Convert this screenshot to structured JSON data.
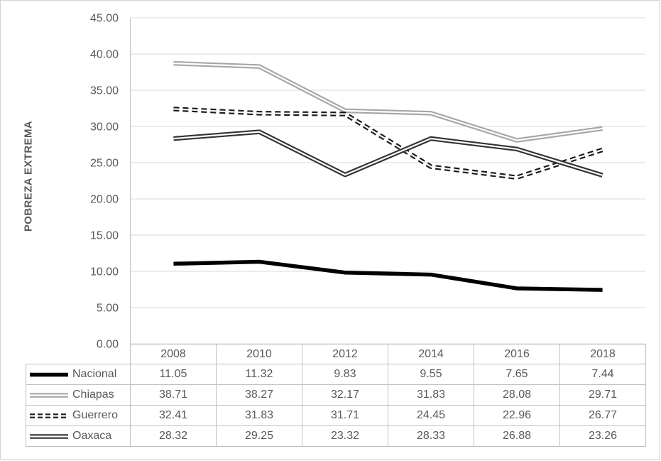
{
  "chart_data": {
    "type": "line",
    "title": "",
    "ylabel": "POBREZA EXTREMA",
    "xlabel": "",
    "ylim": [
      0,
      45
    ],
    "y_tick_step": 5,
    "y_tick_decimals": 2,
    "value_decimals": 2,
    "grid": true,
    "legend_position": "table-left",
    "categories": [
      "2008",
      "2010",
      "2012",
      "2014",
      "2016",
      "2018"
    ],
    "series": [
      {
        "name": "Nacional",
        "style": "solid-thick",
        "color": "#000000",
        "values": [
          11.05,
          11.32,
          9.83,
          9.55,
          7.65,
          7.44
        ]
      },
      {
        "name": "Chiapas",
        "style": "double",
        "color": "#a6a6a6",
        "values": [
          38.71,
          38.27,
          32.17,
          31.83,
          28.08,
          29.71
        ]
      },
      {
        "name": "Guerrero",
        "style": "double-dashed",
        "color": "#1a1a1a",
        "values": [
          32.41,
          31.83,
          31.71,
          24.45,
          22.96,
          26.77
        ]
      },
      {
        "name": "Oaxaca",
        "style": "double",
        "color": "#333333",
        "values": [
          28.32,
          29.25,
          23.32,
          28.33,
          26.88,
          23.26
        ]
      }
    ],
    "colors": {
      "grid": "#d9d9d9",
      "axis": "#bfbfbf",
      "text": "#595959",
      "table_border": "#bfbfbf",
      "background": "#ffffff"
    }
  }
}
